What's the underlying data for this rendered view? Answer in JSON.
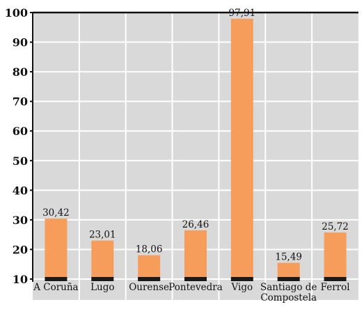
{
  "chart_data": {
    "type": "bar",
    "title": "",
    "xlabel": "",
    "ylabel": "",
    "categories": [
      "A Coruña",
      "Lugo",
      "Ourense",
      "Pontevedra",
      "Vigo",
      "Santiago de Compostela",
      "Ferrol"
    ],
    "category_label_lines": [
      [
        "A Coruña"
      ],
      [
        "Lugo"
      ],
      [
        "Ourense"
      ],
      [
        "Pontevedra"
      ],
      [
        "Vigo"
      ],
      [
        "Santiago de",
        "Compostela"
      ],
      [
        "Ferrol"
      ]
    ],
    "values": [
      30.42,
      23.01,
      18.06,
      26.46,
      97.91,
      15.49,
      25.72
    ],
    "value_labels": [
      "30,42",
      "23,01",
      "18,06",
      "26,46",
      "97,91",
      "15,49",
      "25,72"
    ],
    "ylim": [
      10,
      100
    ],
    "yticks": [
      10,
      20,
      30,
      40,
      50,
      60,
      70,
      80,
      90,
      100
    ],
    "grid": true,
    "colors": {
      "bar": "#f79d5c",
      "bar_base": "#1a1a1a",
      "plot_background": "#d9d9d9",
      "gridline": "#ffffff",
      "axis": "#111111"
    }
  }
}
